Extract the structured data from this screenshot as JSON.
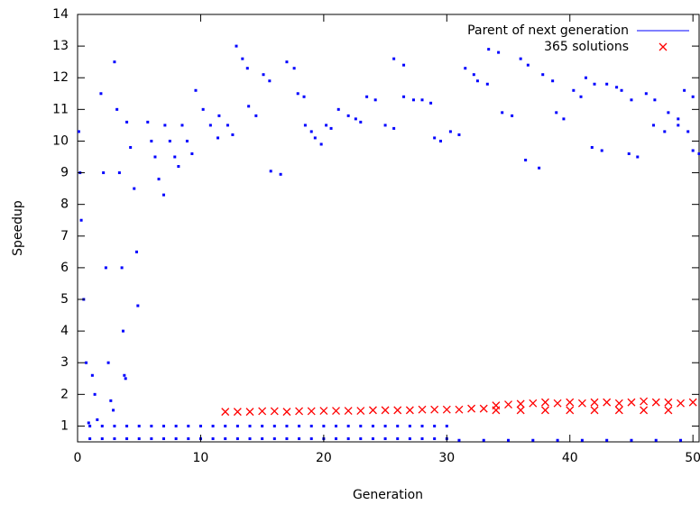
{
  "chart_data": {
    "type": "scatter",
    "x_label": "Generation",
    "y_label": "Speedup",
    "xlim": [
      0,
      50.5
    ],
    "ylim": [
      0.5,
      14
    ],
    "xticks": [
      0,
      10,
      20,
      30,
      40,
      50
    ],
    "yticks": [
      1,
      2,
      3,
      4,
      5,
      6,
      7,
      8,
      9,
      10,
      11,
      12,
      13,
      14
    ],
    "legend_position": "top-right",
    "series": [
      {
        "name": "Parent of next generation",
        "color": "#0000ff",
        "marker": "dot",
        "x": [
          0.1,
          0.2,
          0.3,
          0.5,
          0.7,
          0.9,
          1.2,
          1.4,
          1.6,
          1.9,
          2.1,
          2.3,
          2.5,
          2.7,
          2.9,
          3.0,
          3.2,
          3.4,
          3.6,
          3.7,
          3.8,
          3.9,
          4.0,
          4.3,
          4.6,
          4.8,
          4.9,
          5.7,
          6,
          6.3,
          6.6,
          7.0,
          7.1,
          7.5,
          7.9,
          8.2,
          8.5,
          8.9,
          9.3,
          9.6,
          10.2,
          10.8,
          11.4,
          11.5,
          12.2,
          12.6,
          12.9,
          13.4,
          13.8,
          13.9,
          14.5,
          15.1,
          15.6,
          15.7,
          16.5,
          17,
          17.6,
          17.9,
          18.4,
          18.5,
          19,
          19.3,
          19.8,
          20.2,
          20.6,
          21.2,
          22,
          22.6,
          23,
          23.5,
          24.2,
          25,
          25.7,
          25.7,
          26.5,
          26.5,
          27.3,
          28,
          28.7,
          29,
          29.5,
          30.3,
          31,
          31.5,
          32.2,
          32.5,
          33.3,
          33.4,
          34.2,
          34.5,
          35.3,
          36,
          36.6,
          36.4,
          37.5,
          37.8,
          38.6,
          38.9,
          39.5,
          40.3,
          40.9,
          41.3,
          42,
          41.8,
          42.6,
          43,
          43.8,
          44.2,
          45,
          44.8,
          45.5,
          46.2,
          46.9,
          46.8,
          47.7,
          48,
          48.8,
          48.8,
          49.6,
          49.3,
          50,
          50,
          50.5,
          1,
          2,
          3,
          4,
          5,
          6,
          7,
          8,
          9,
          10,
          11,
          12,
          13,
          14,
          15,
          16,
          17,
          18,
          19,
          20,
          21,
          22,
          23,
          24,
          25,
          26,
          27,
          28,
          29,
          30,
          1,
          2,
          3,
          4,
          5,
          6,
          7,
          8,
          9,
          10,
          11,
          12,
          13,
          14,
          15,
          16,
          17,
          18,
          19,
          20,
          21,
          22,
          23,
          24,
          25,
          26,
          27,
          28,
          29,
          30,
          31,
          33,
          35,
          37,
          39,
          41,
          43,
          45,
          47,
          49
        ],
        "values": [
          10.3,
          9,
          7.5,
          5,
          3,
          1.1,
          2.6,
          2,
          1.2,
          11.5,
          9,
          6,
          3,
          1.8,
          1.5,
          12.5,
          11,
          9,
          6,
          4,
          2.6,
          2.5,
          10.6,
          9.8,
          8.5,
          6.5,
          4.8,
          10.6,
          10,
          9.5,
          8.8,
          8.3,
          10.5,
          10,
          9.5,
          9.2,
          10.5,
          10,
          9.6,
          11.6,
          11,
          10.5,
          10.1,
          10.8,
          10.5,
          10.2,
          13,
          12.6,
          12.3,
          11.1,
          10.8,
          12.1,
          11.9,
          9.05,
          8.95,
          12.5,
          12.3,
          11.5,
          11.4,
          10.5,
          10.3,
          10.1,
          9.9,
          10.5,
          10.4,
          11,
          10.8,
          10.7,
          10.6,
          11.4,
          11.3,
          10.5,
          10.4,
          12.6,
          12.4,
          11.4,
          11.3,
          11.3,
          11.2,
          10.1,
          10,
          10.3,
          10.2,
          12.3,
          12.1,
          11.9,
          11.8,
          12.9,
          12.8,
          10.9,
          10.8,
          12.6,
          12.4,
          9.4,
          9.15,
          12.1,
          11.9,
          10.9,
          10.7,
          11.6,
          11.4,
          12,
          11.8,
          9.8,
          9.7,
          11.8,
          11.7,
          11.6,
          11.3,
          9.6,
          9.5,
          11.5,
          11.3,
          10.5,
          10.3,
          10.9,
          10.7,
          10.5,
          10.3,
          11.6,
          11.4,
          9.7,
          9.6,
          1,
          1,
          1,
          1,
          1,
          1,
          1,
          1,
          1,
          1,
          1,
          1,
          1,
          1,
          1,
          1,
          1,
          1,
          1,
          1,
          1,
          1,
          1,
          1,
          1,
          1,
          1,
          1,
          1,
          1,
          0.6,
          0.6,
          0.6,
          0.6,
          0.6,
          0.6,
          0.6,
          0.6,
          0.6,
          0.6,
          0.6,
          0.6,
          0.6,
          0.6,
          0.6,
          0.6,
          0.6,
          0.6,
          0.6,
          0.6,
          0.6,
          0.6,
          0.6,
          0.6,
          0.6,
          0.6,
          0.6,
          0.6,
          0.6,
          0.6,
          0.55,
          0.55,
          0.55,
          0.55,
          0.55,
          0.55,
          0.55,
          0.55,
          0.55,
          0.55
        ]
      },
      {
        "name": "365 solutions",
        "color": "#ff0000",
        "marker": "cross",
        "x": [
          12,
          13,
          14,
          15,
          16,
          17,
          18,
          19,
          20,
          21,
          22,
          23,
          24,
          25,
          26,
          27,
          28,
          29,
          30,
          31,
          32,
          33,
          34,
          35,
          36,
          37,
          38,
          39,
          40,
          41,
          42,
          43,
          44,
          45,
          46,
          47,
          48,
          49,
          50,
          34,
          36,
          38,
          40,
          42,
          44,
          46,
          48
        ],
        "values": [
          1.45,
          1.45,
          1.45,
          1.47,
          1.47,
          1.45,
          1.47,
          1.47,
          1.48,
          1.48,
          1.48,
          1.48,
          1.5,
          1.5,
          1.5,
          1.5,
          1.52,
          1.52,
          1.52,
          1.52,
          1.55,
          1.55,
          1.65,
          1.68,
          1.7,
          1.72,
          1.75,
          1.72,
          1.75,
          1.72,
          1.75,
          1.75,
          1.72,
          1.75,
          1.78,
          1.75,
          1.75,
          1.72,
          1.75,
          1.5,
          1.5,
          1.5,
          1.5,
          1.5,
          1.5,
          1.5,
          1.5
        ]
      }
    ]
  }
}
